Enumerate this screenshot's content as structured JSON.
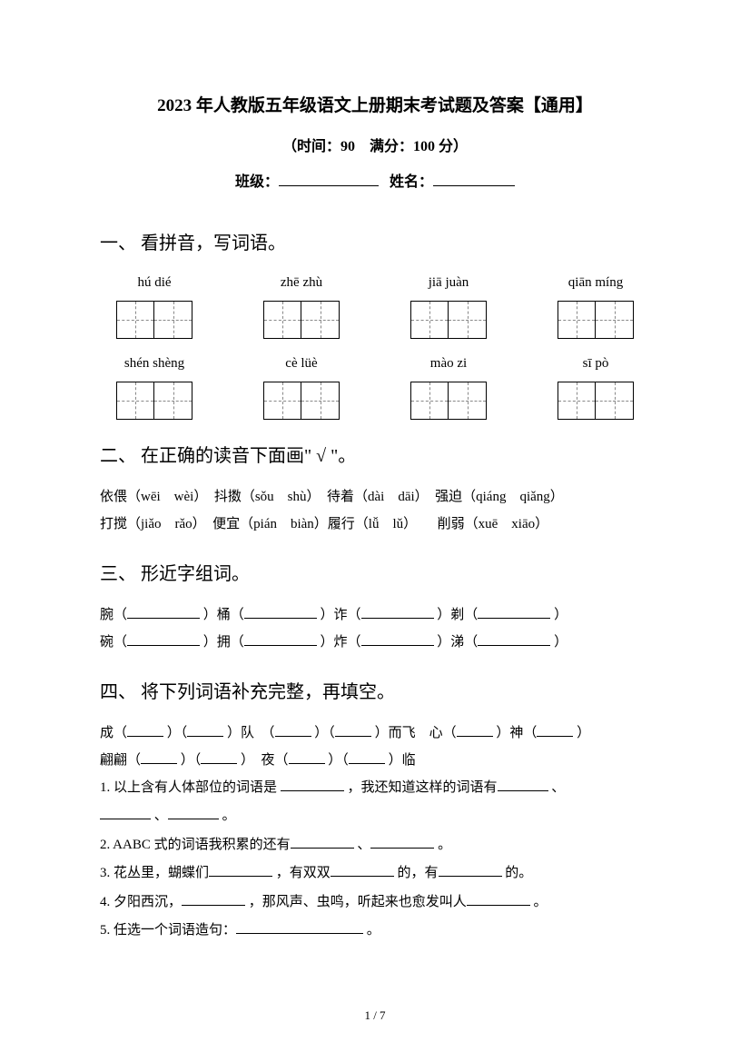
{
  "title": "2023 年人教版五年级语文上册期末考试题及答案【通用】",
  "subtitle": "（时间：90　满分：100 分）",
  "info": {
    "class_label": "班级：",
    "name_label": "姓名："
  },
  "section1": {
    "heading": "一、 看拼音，写词语。",
    "row1": [
      "hú dié",
      "zhē zhù",
      "jiā juàn",
      "qiān míng"
    ],
    "row2": [
      "shén shèng",
      "cè lüè",
      "mào zi",
      "sī pò"
    ]
  },
  "section2": {
    "heading": "二、 在正确的读音下面画\" √ \"。",
    "line1": "依偎（wēi　wèi）　抖擞（sǒu　shù）　待着（dài　dāi）　强迫（qiáng　qiǎng）",
    "line2": "打搅（jiǎo　rǎo）　便宜（pián　biàn）履行（lǚ　lǔ）　　削弱（xuē　xiāo）"
  },
  "section3": {
    "heading": "三、 形近字组词。",
    "row1": [
      "腕（",
      "）桶（",
      "）诈（",
      "）剃（",
      "）"
    ],
    "row2": [
      "碗（",
      "）拥（",
      "）炸（",
      "）涕（",
      "）"
    ]
  },
  "section4": {
    "heading": "四、 将下列词语补充完整，再填空。",
    "line1_parts": [
      "成（",
      "）（",
      "）队　（",
      "）（",
      "）而飞　心（",
      "）神（",
      "）"
    ],
    "line2_parts": [
      "翩翩（",
      "）（",
      "）　夜（",
      "）（",
      "）临"
    ],
    "q1a": "1. 以上含有人体部位的词语是 ",
    "q1b": "，我还知道这样的词语有",
    "q1c": "、",
    "q1d": "、",
    "q1e": "。",
    "q2a": "2. AABC 式的词语我积累的还有",
    "q2b": "、",
    "q2c": "。",
    "q3a": "3. 花丛里，蝴蝶们",
    "q3b": "，有双双",
    "q3c": "的，有",
    "q3d": "的。",
    "q4a": "4. 夕阳西沉，",
    "q4b": "，那风声、虫鸣，听起来也愈发叫人",
    "q4c": "。",
    "q5a": "5. 任选一个词语造句：",
    "q5b": "。"
  },
  "page_num": "1 / 7",
  "colors": {
    "text": "#000000",
    "bg": "#ffffff",
    "dash": "#888888"
  }
}
